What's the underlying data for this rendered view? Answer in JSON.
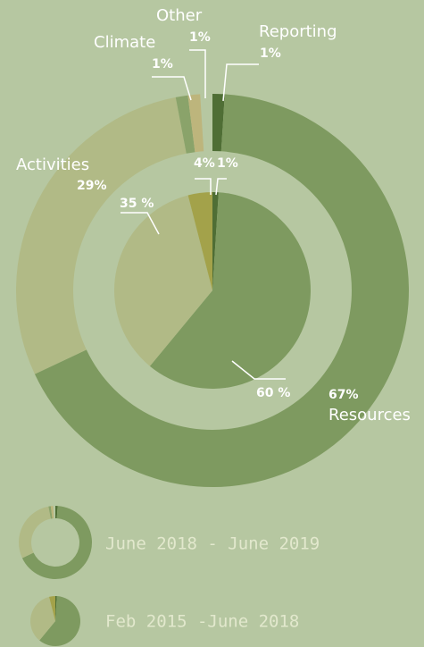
{
  "chart_data": [
    {
      "type": "donut",
      "name": "June 2018 - June 2019",
      "categories": [
        "Reporting",
        "Resources",
        "Activities",
        "Climate",
        "Other"
      ],
      "values": [
        1,
        67,
        29,
        1,
        1
      ],
      "value_labels": [
        "1%",
        "67%",
        "29%",
        "1%",
        "1%"
      ],
      "colors": [
        "#4f6e35",
        "#7e9a60",
        "#b1ba86",
        "#8aa36a",
        "#bdb57c"
      ]
    },
    {
      "type": "pie",
      "name": "Feb 2015 -June 2018",
      "values": [
        1,
        60,
        35,
        4
      ],
      "value_labels": [
        "1%",
        "60 %",
        "35 %",
        "4%"
      ],
      "colors": [
        "#4f6e35",
        "#7e9a60",
        "#b1ba86",
        "#a3a24a"
      ]
    }
  ]
}
